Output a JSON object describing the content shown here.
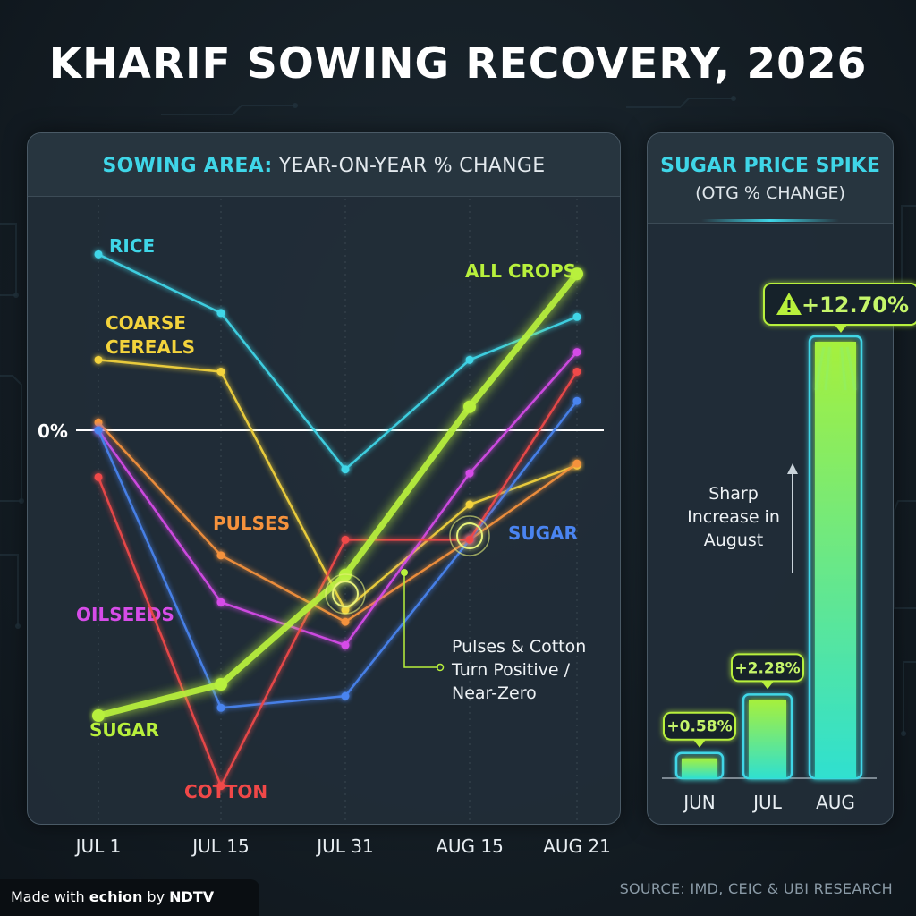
{
  "title": "KHARIF SOWING RECOVERY, 2026",
  "source": "SOURCE: IMD, CEIC & UBI RESEARCH",
  "credit": {
    "prefix": "Made with",
    "brand": "echion",
    "by": "by",
    "org": "NDTV"
  },
  "left_panel": {
    "title_accent": "SOWING AREA:",
    "title_rest": "YEAR-ON-YEAR % CHANGE"
  },
  "right_panel": {
    "title": "SUGAR PRICE SPIKE",
    "subtitle": "(OTG % CHANGE)"
  },
  "chart_data": [
    {
      "type": "line",
      "title": "SOWING AREA: YEAR-ON-YEAR % CHANGE",
      "x": [
        "JUL 1",
        "JUL 15",
        "JUL 31",
        "AUG 15",
        "AUG 21"
      ],
      "ylim": [
        -10,
        4.5
      ],
      "zero_label": "0%",
      "grid": false,
      "series": [
        {
          "name": "RICE",
          "color": "#3fd6e8",
          "values": [
            4.5,
            3.0,
            -1.0,
            1.8,
            2.9
          ]
        },
        {
          "name": "COARSE CEREALS",
          "color": "#f3d33c",
          "values": [
            1.8,
            1.5,
            -4.6,
            -1.9,
            -0.9
          ]
        },
        {
          "name": "PULSES",
          "color": "#f5923c",
          "values": [
            0.2,
            -3.2,
            -4.9,
            -2.8,
            -0.85
          ]
        },
        {
          "name": "OILSEEDS",
          "color": "#d64ce8",
          "values": [
            0.0,
            -4.4,
            -5.5,
            -1.1,
            2.0
          ]
        },
        {
          "name": "SUGAR",
          "color": "#4a84f0",
          "values": [
            0.0,
            -7.1,
            -6.8,
            -2.8,
            0.75
          ]
        },
        {
          "name": "COTTON",
          "color": "#f04848",
          "values": [
            -1.2,
            -9.1,
            -2.8,
            -2.8,
            1.5
          ]
        },
        {
          "name": "ALL CROPS",
          "color": "#b8f03c",
          "values": [
            -7.3,
            -6.5,
            -3.7,
            0.6,
            4.0
          ]
        }
      ],
      "series_labels": {
        "sugar_green": "SUGAR"
      },
      "annotation": "Pulses & Cotton\nTurn Positive /\nNear-Zero"
    },
    {
      "type": "bar",
      "title": "SUGAR PRICE SPIKE (OTG % CHANGE)",
      "categories": [
        "JUN",
        "JUL",
        "AUG"
      ],
      "values": [
        0.58,
        2.28,
        12.7
      ],
      "value_labels": [
        "+0.58%",
        "+2.28%",
        "+12.70%"
      ],
      "ylim": [
        0,
        12.7
      ],
      "annotation": "Sharp\nIncrease in\nAugust",
      "warning_icon": "warning-triangle-icon"
    }
  ]
}
